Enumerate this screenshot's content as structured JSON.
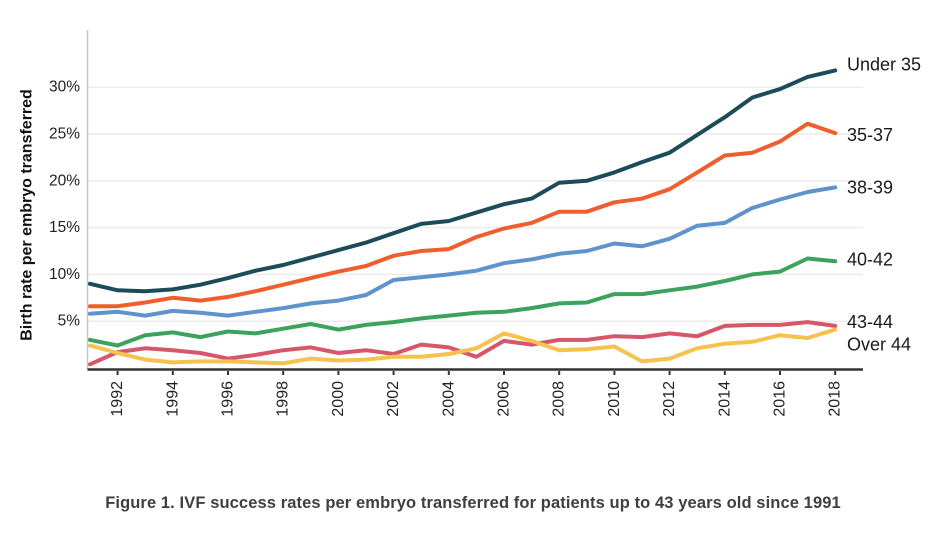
{
  "figure": {
    "caption": "Figure 1. IVF success rates per embryo transferred for patients up to 43 years old since 1991"
  },
  "chart_data": {
    "type": "line",
    "title": "",
    "xlabel": "",
    "ylabel": "Birth rate per embryo transferred",
    "x": [
      1991,
      1992,
      1993,
      1994,
      1995,
      1996,
      1997,
      1998,
      1999,
      2000,
      2001,
      2002,
      2003,
      2004,
      2005,
      2006,
      2007,
      2008,
      2009,
      2010,
      2011,
      2012,
      2013,
      2014,
      2015,
      2016,
      2017,
      2018
    ],
    "x_tick_labels": [
      "1992",
      "1994",
      "1996",
      "1998",
      "2000",
      "2002",
      "2004",
      "2006",
      "2008",
      "2010",
      "2012",
      "2014",
      "2016",
      "2018"
    ],
    "y_tick_labels": [
      "5%",
      "10%",
      "15%",
      "20%",
      "25%",
      "30%"
    ],
    "y_tick_values": [
      5,
      10,
      15,
      20,
      25,
      30
    ],
    "ylim": [
      0,
      33
    ],
    "grid": "horizontal",
    "legend_position": "right-end-labels",
    "series": [
      {
        "name": "Under 35",
        "color": "#1c4c59",
        "values": [
          9.0,
          8.3,
          8.2,
          8.4,
          8.9,
          9.6,
          10.4,
          11.0,
          11.8,
          12.6,
          13.4,
          14.4,
          15.4,
          15.7,
          16.6,
          17.5,
          18.1,
          19.8,
          20.0,
          20.9,
          22.0,
          23.0,
          24.9,
          26.8,
          28.9,
          29.8,
          31.1,
          31.8
        ]
      },
      {
        "name": "35-37",
        "color": "#f05e2e",
        "values": [
          6.6,
          6.6,
          7.0,
          7.5,
          7.2,
          7.6,
          8.2,
          8.9,
          9.6,
          10.3,
          10.9,
          12.0,
          12.5,
          12.7,
          14.0,
          14.9,
          15.5,
          16.7,
          16.7,
          17.7,
          18.1,
          19.1,
          20.9,
          22.7,
          23.0,
          24.2,
          26.1,
          25.1
        ]
      },
      {
        "name": "38-39",
        "color": "#5e94cb",
        "values": [
          5.8,
          6.0,
          5.6,
          6.1,
          5.9,
          5.6,
          6.0,
          6.4,
          6.9,
          7.2,
          7.8,
          9.4,
          9.7,
          10.0,
          10.4,
          11.2,
          11.6,
          12.2,
          12.5,
          13.3,
          13.0,
          13.8,
          15.2,
          15.5,
          17.1,
          18.0,
          18.8,
          19.3
        ]
      },
      {
        "name": "40-42",
        "color": "#3ba35c",
        "values": [
          3.0,
          2.4,
          3.5,
          3.8,
          3.3,
          3.9,
          3.7,
          4.2,
          4.7,
          4.1,
          4.6,
          4.9,
          5.3,
          5.6,
          5.9,
          6.0,
          6.4,
          6.9,
          7.0,
          7.9,
          7.9,
          8.3,
          8.7,
          9.3,
          10.0,
          10.3,
          11.7,
          11.4
        ]
      },
      {
        "name": "43-44",
        "color": "#d6566a",
        "values": [
          0.4,
          1.7,
          2.1,
          1.9,
          1.6,
          1.0,
          1.4,
          1.9,
          2.2,
          1.6,
          1.9,
          1.5,
          2.5,
          2.2,
          1.2,
          2.9,
          2.5,
          3.0,
          3.0,
          3.4,
          3.3,
          3.7,
          3.4,
          4.5,
          4.6,
          4.6,
          4.9,
          4.5
        ]
      },
      {
        "name": "Over 44",
        "color": "#f5c34d",
        "values": [
          2.4,
          1.6,
          0.9,
          0.6,
          0.7,
          0.7,
          0.6,
          0.5,
          1.0,
          0.8,
          0.9,
          1.2,
          1.2,
          1.5,
          2.1,
          3.7,
          2.9,
          1.9,
          2.0,
          2.3,
          0.7,
          1.0,
          2.1,
          2.6,
          2.8,
          3.5,
          3.2,
          4.1
        ]
      }
    ]
  }
}
